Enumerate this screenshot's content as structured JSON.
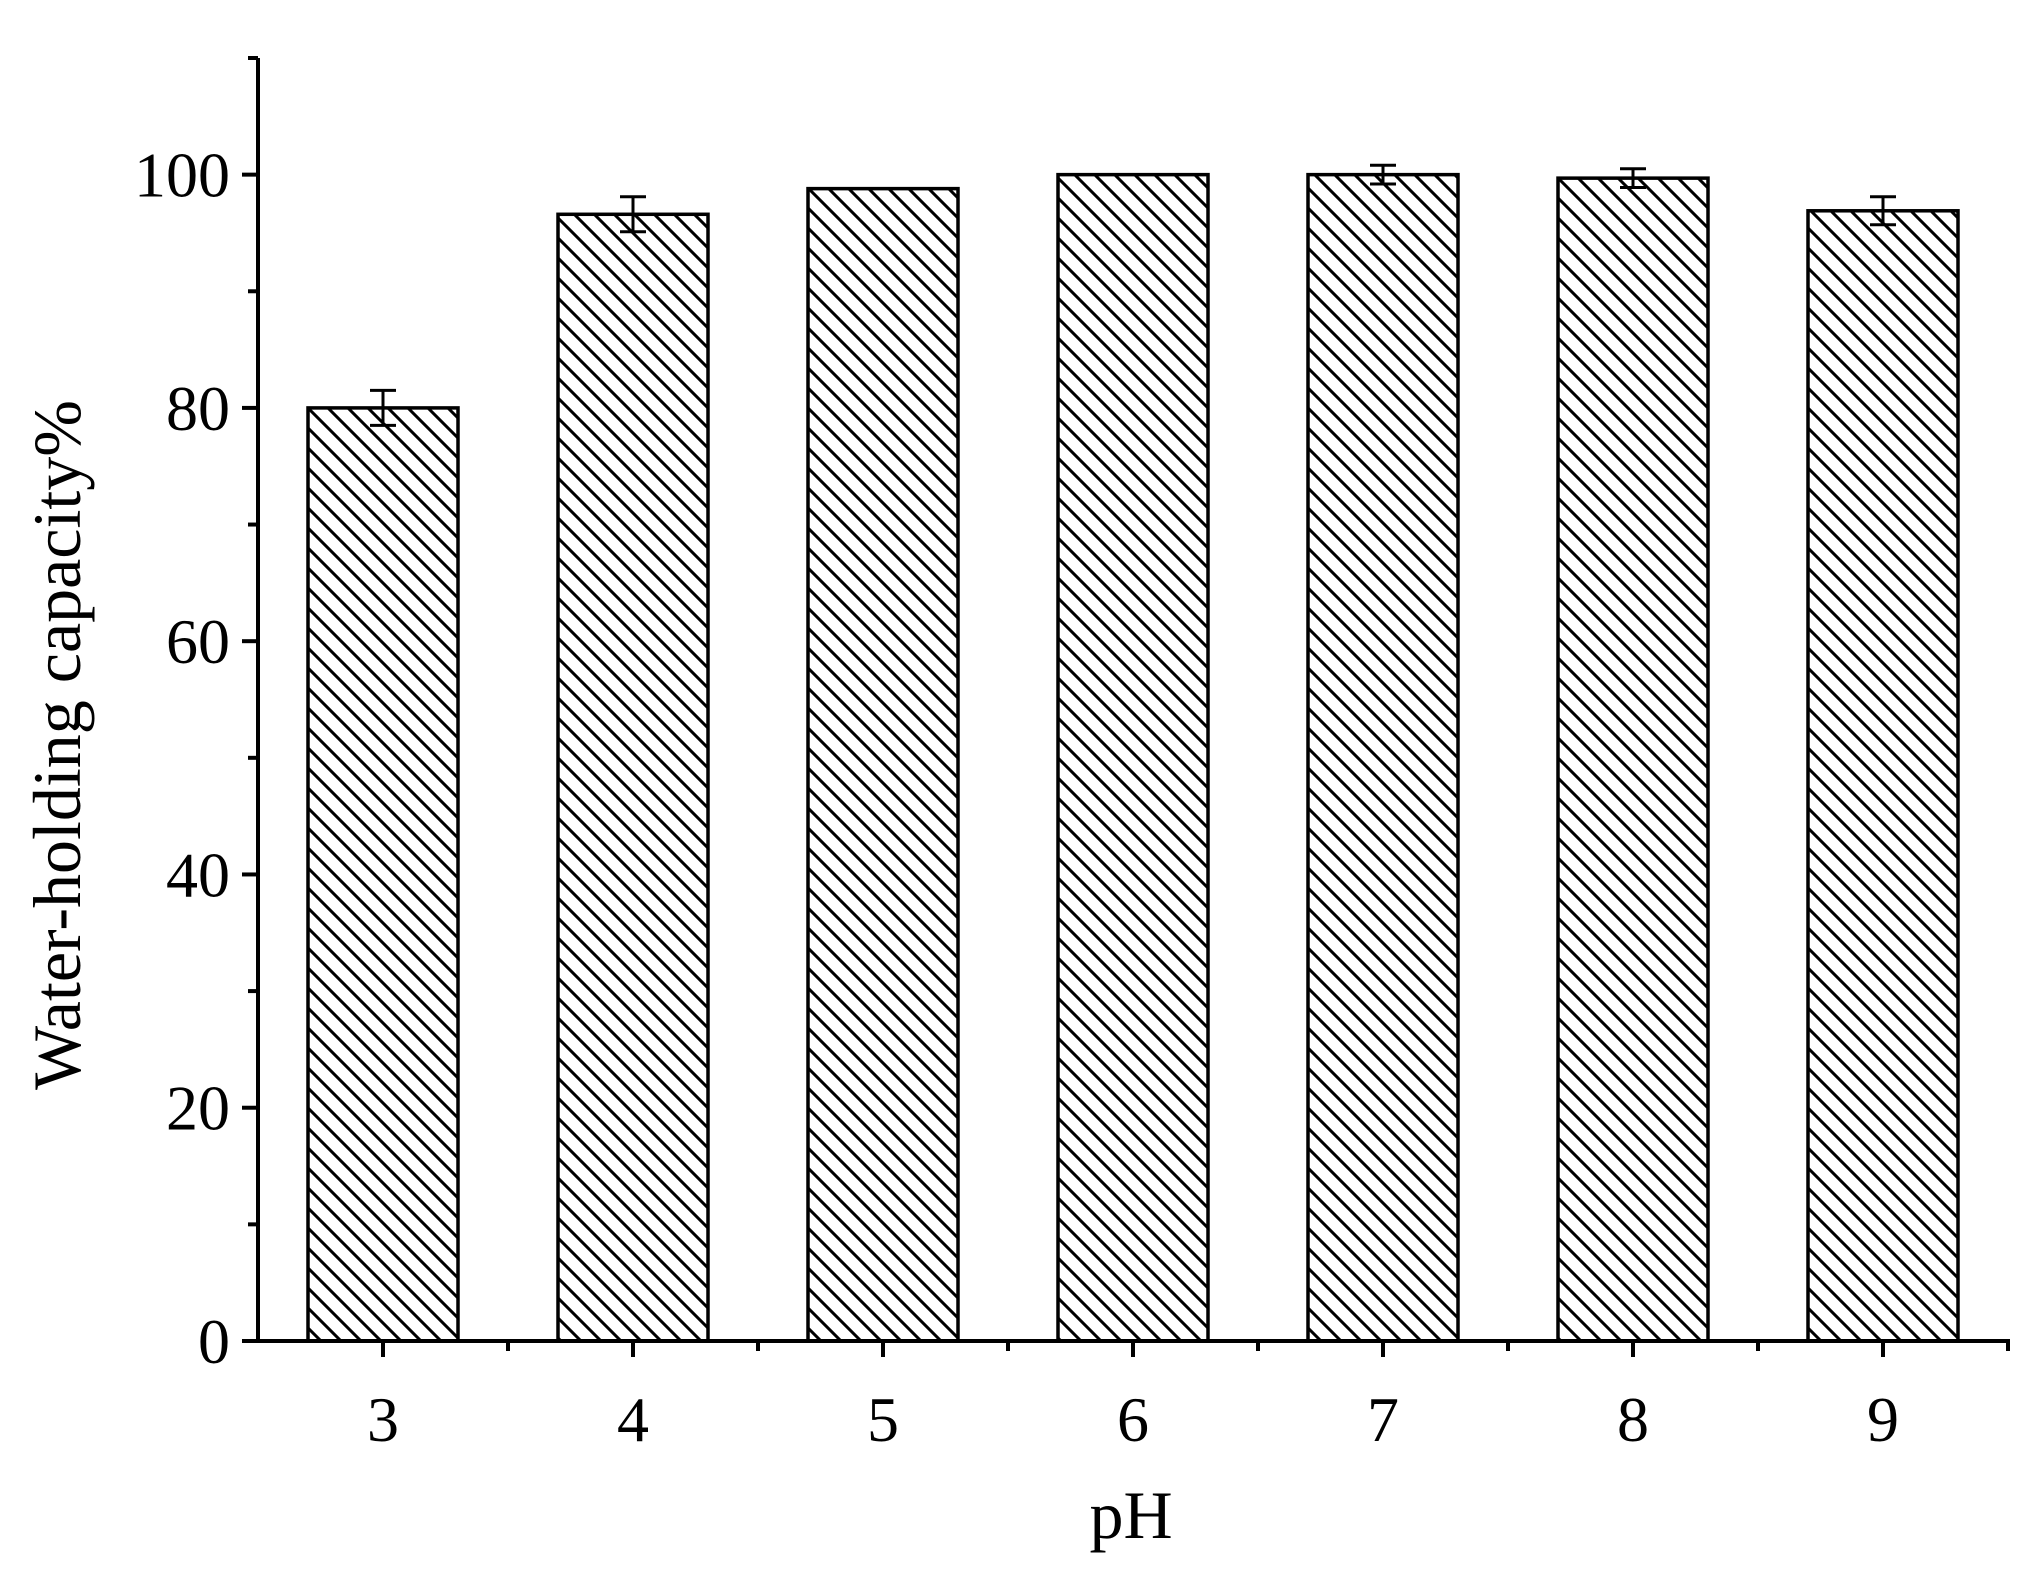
{
  "chart_data": {
    "type": "bar",
    "title": "",
    "xlabel": "pH",
    "ylabel": "Water-holding capacity%",
    "categories": [
      "3",
      "4",
      "5",
      "6",
      "7",
      "8",
      "9"
    ],
    "values": [
      80.0,
      96.6,
      98.8,
      100.0,
      100.0,
      99.7,
      96.9
    ],
    "errors": [
      1.5,
      1.5,
      0,
      0,
      0.8,
      0.8,
      1.2
    ],
    "ylim": [
      0,
      110
    ],
    "yticks": [
      0,
      20,
      40,
      60,
      80,
      100
    ],
    "yminor_ticks": [
      10,
      30,
      50,
      70,
      90,
      110
    ],
    "bar_fill": "hatched diagonal",
    "colors": {
      "bar_stroke": "#000000",
      "bar_fill": "#ffffff",
      "hatch": "#000000",
      "axis": "#000000"
    },
    "grid": false,
    "legend": "none"
  }
}
